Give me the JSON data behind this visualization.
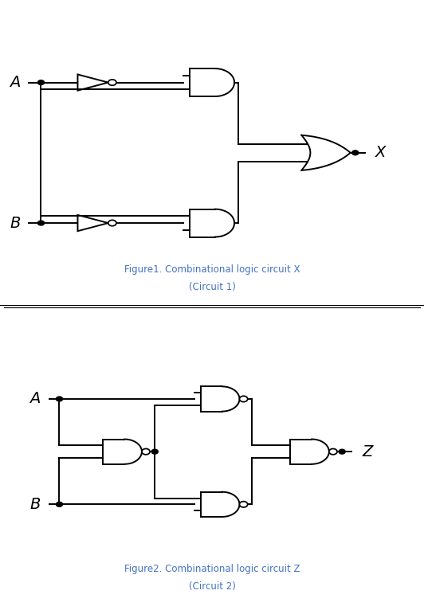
{
  "fig_width": 5.32,
  "fig_height": 7.66,
  "bg_color": "#ffffff",
  "caption1": "Figure1. Combinational logic circuit X",
  "caption1b": "(Circuit 1)",
  "caption2": "Figure2. Combinational logic circuit Z",
  "caption2b": "(Circuit 2)",
  "caption_color": "#4472c4",
  "caption_fontsize": 8.5,
  "lw": 1.4,
  "dot_r": 0.008,
  "bubble_r": 0.01
}
